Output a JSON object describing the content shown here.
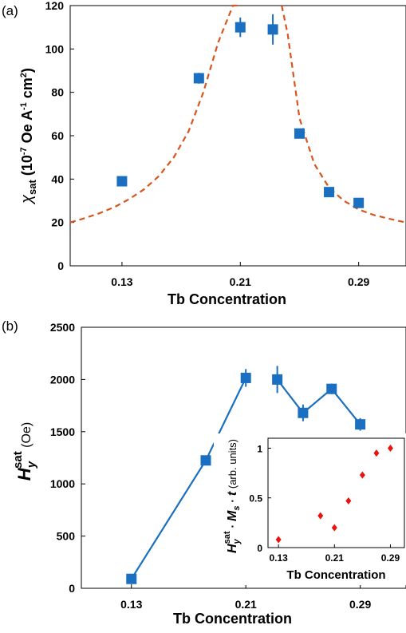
{
  "chart_data": [
    {
      "panel_label": "(a)",
      "type": "scatter",
      "xlabel": "Tb Concentration",
      "ylabel": {
        "sym": "χ",
        "sub": "sat",
        "unit_a": " (10",
        "exp1": "-7",
        "unit_b": " Oe A",
        "exp2": "-1",
        "unit_c": " cm",
        "exp3": "2",
        "unit_d": ")"
      },
      "xlim": [
        0.095,
        0.322
      ],
      "ylim": [
        0,
        120
      ],
      "xticks": [
        "0.13",
        "0.21",
        "0.29"
      ],
      "xtick_values": [
        0.13,
        0.21,
        0.29
      ],
      "yticks": [
        "0",
        "20",
        "40",
        "60",
        "80",
        "100",
        "120"
      ],
      "ytick_values": [
        0,
        20,
        40,
        60,
        80,
        100,
        120
      ],
      "series": [
        {
          "type": "scatter",
          "color": "#1a6fc0",
          "marker": "square",
          "x": [
            0.13,
            0.182,
            0.21,
            0.232,
            0.25,
            0.27,
            0.29
          ],
          "y": [
            39,
            86.5,
            110,
            109,
            61,
            34,
            29
          ],
          "err": [
            0,
            2.5,
            4.5,
            7,
            2,
            0,
            0
          ]
        },
        {
          "type": "line",
          "style": "dashed",
          "color": "#d9541e",
          "description": "fit",
          "x": [
            0.095,
            0.105,
            0.115,
            0.125,
            0.135,
            0.145,
            0.155,
            0.165,
            0.175,
            0.185,
            0.195,
            0.205,
            0.21
          ],
          "y": [
            20,
            22,
            24.3,
            27.1,
            30.8,
            35.3,
            41.4,
            50,
            62,
            80,
            103,
            131,
            152
          ],
          "x2": [
            0.238,
            0.242,
            0.25,
            0.26,
            0.27,
            0.28,
            0.29,
            0.3,
            0.31,
            0.322
          ],
          "y2": [
            152,
            107,
            68,
            47,
            36,
            30,
            26,
            23.5,
            21.8,
            20
          ]
        }
      ]
    },
    {
      "panel_label": "(b)",
      "type": "line",
      "xlabel": "Tb Concentration",
      "ylabel": {
        "sym": "H",
        "sub": "y",
        "sup": "sat",
        "unit": " (Oe)"
      },
      "xlim": [
        0.095,
        0.322
      ],
      "ylim": [
        0,
        2500
      ],
      "xticks": [
        "0.13",
        "0.21",
        "0.29"
      ],
      "xtick_values": [
        0.13,
        0.21,
        0.29
      ],
      "yticks": [
        "0",
        "500",
        "1000",
        "1500",
        "2000",
        "2500"
      ],
      "ytick_values": [
        0,
        500,
        1000,
        1500,
        2000,
        2500
      ],
      "series": [
        {
          "color": "#1a6fc0",
          "marker": "square",
          "x": [
            0.13,
            0.182,
            0.21
          ],
          "y": [
            90,
            1225,
            2015
          ],
          "err": [
            0,
            0,
            85
          ]
        },
        {
          "color": "#1a6fc0",
          "marker": "square",
          "x": [
            0.232,
            0.25,
            0.27,
            0.29
          ],
          "y": [
            2000,
            1680,
            1910,
            1570
          ],
          "err": [
            130,
            80,
            50,
            60
          ]
        }
      ],
      "inset": {
        "type": "scatter",
        "xlabel": "Tb Concentration",
        "ylabel": {
          "sym": "H",
          "sub": "y",
          "sup": "sat",
          "rest1": " · ",
          "sym2": "M",
          "sub2": "s",
          "rest2": " · ",
          "sym3": "t",
          "unit": " (arb. units)"
        },
        "xlim": [
          0.115,
          0.31
        ],
        "ylim": [
          0,
          1.1
        ],
        "xticks": [
          "0.13",
          "0.21",
          "0.29"
        ],
        "xtick_values": [
          0.13,
          0.21,
          0.29
        ],
        "yticks": [
          "0",
          "0.5",
          "1"
        ],
        "ytick_values": [
          0,
          0.5,
          1
        ],
        "series": [
          {
            "color": "#e8140e",
            "marker": "diamond",
            "x": [
              0.13,
              0.19,
              0.21,
              0.23,
              0.25,
              0.27,
              0.29
            ],
            "y": [
              0.08,
              0.32,
              0.2,
              0.47,
              0.73,
              0.95,
              1.0
            ]
          }
        ]
      }
    }
  ]
}
